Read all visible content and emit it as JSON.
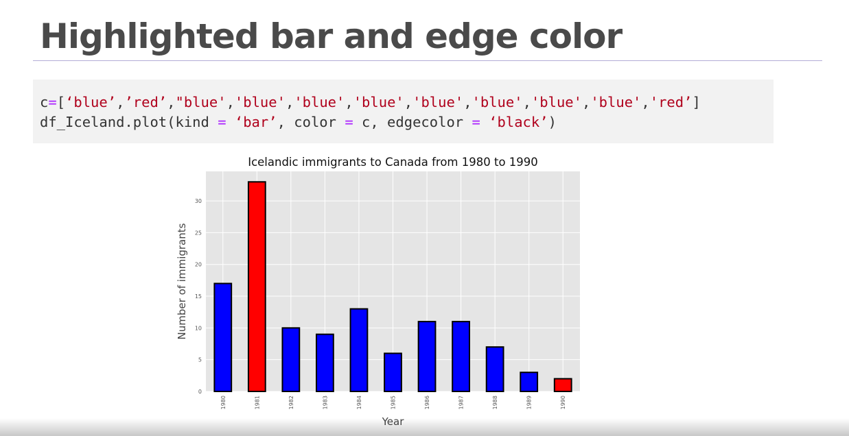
{
  "slide": {
    "title": "Highlighted bar and edge color"
  },
  "code": {
    "line1_prefix": "c",
    "line1_eq": "=",
    "line1_open": "[",
    "line1_items": [
      "‘blue’",
      "’red’",
      "\"blue'",
      "'blue'",
      "'blue'",
      "'blue'",
      "'blue'",
      "'blue'",
      "'blue'",
      "'blue'",
      "'red’"
    ],
    "line1_close": "]",
    "line2_a": "df_Iceland.plot(kind ",
    "line2_eq1": "=",
    "line2_str1": " ‘bar’",
    "line2_b": ", color ",
    "line2_eq2": "=",
    "line2_c": " c, edgecolor ",
    "line2_eq3": "=",
    "line2_str2": " ‘black’",
    "line2_close": ")"
  },
  "colors": {
    "plot_background": "#e5e5e5",
    "grid": "#ffffff",
    "bar_edge": "#000000"
  },
  "chart_data": {
    "type": "bar",
    "title": "Icelandic immigrants to Canada from 1980 to 1990",
    "xlabel": "Year",
    "ylabel": "Number of immigrants",
    "categories": [
      "1980",
      "1981",
      "1982",
      "1983",
      "1984",
      "1985",
      "1986",
      "1987",
      "1988",
      "1989",
      "1990"
    ],
    "values": [
      17,
      33,
      10,
      9,
      13,
      6,
      11,
      11,
      7,
      3,
      2
    ],
    "bar_colors": [
      "#0000ff",
      "#ff0000",
      "#0000ff",
      "#0000ff",
      "#0000ff",
      "#0000ff",
      "#0000ff",
      "#0000ff",
      "#0000ff",
      "#0000ff",
      "#ff0000"
    ],
    "yticks": [
      "0",
      "5",
      "10",
      "15",
      "20",
      "25",
      "30"
    ],
    "ylim": [
      0,
      34.65
    ],
    "grid": true
  }
}
